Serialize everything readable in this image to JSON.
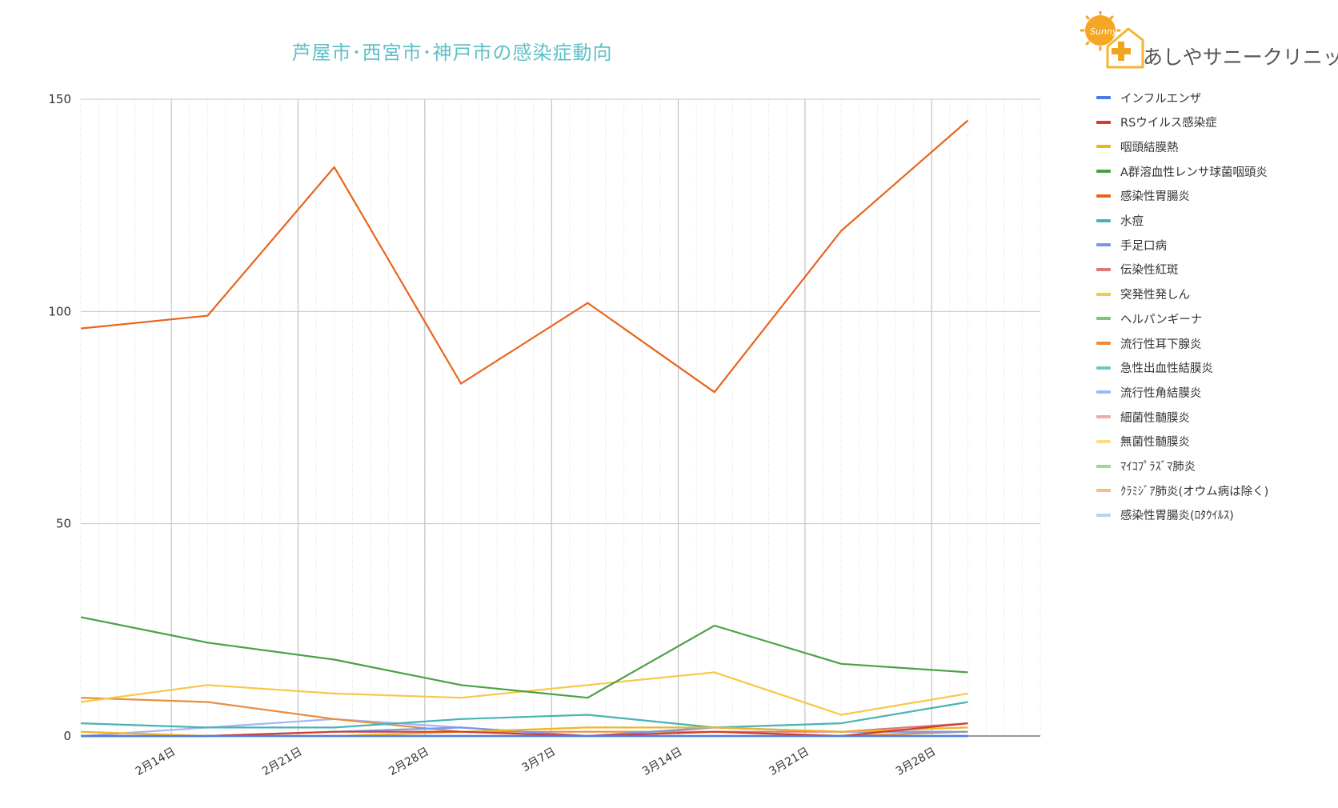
{
  "chart_data": {
    "type": "line",
    "title": "芦屋市･西宮市･神戸市の感染症動向",
    "xlabel": "",
    "ylabel": "",
    "ylim": [
      0,
      150
    ],
    "yticks": [
      0,
      50,
      100,
      150
    ],
    "x_start": "2月9日",
    "x_end": "4月2日",
    "x": [
      "2月9日",
      "2月16日",
      "2月23日",
      "3月2日",
      "3月9日",
      "3月16日",
      "3月23日",
      "3月30日"
    ],
    "x_tick_labels": [
      "2月14日",
      "2月21日",
      "2月28日",
      "3月7日",
      "3月14日",
      "3月21日",
      "3月28日"
    ],
    "grid": true,
    "legend_position": "right",
    "series": [
      {
        "name": "インフルエンザ",
        "color": "#4a7ee6",
        "values": [
          0,
          0,
          0,
          0,
          0,
          0,
          0,
          0
        ]
      },
      {
        "name": "RSウイルス感染症",
        "color": "#d23c32",
        "values": [
          0,
          0,
          1,
          1,
          0,
          1,
          0,
          3
        ]
      },
      {
        "name": "咽頭結膜熱",
        "color": "#f0b41e",
        "values": [
          1,
          0,
          0,
          1,
          2,
          2,
          1,
          2
        ]
      },
      {
        "name": "A群溶血性レンサ球菌咽頭炎",
        "color": "#4aa046",
        "values": [
          28,
          22,
          18,
          12,
          9,
          26,
          17,
          15
        ]
      },
      {
        "name": "感染性胃腸炎",
        "color": "#e8641e",
        "values": [
          96,
          99,
          134,
          83,
          102,
          81,
          119,
          145
        ]
      },
      {
        "name": "水痘",
        "color": "#46b4b4",
        "values": [
          3,
          2,
          2,
          4,
          5,
          2,
          3,
          8
        ]
      },
      {
        "name": "手足口病",
        "color": "#7896f0",
        "values": [
          0,
          0,
          1,
          2,
          0,
          2,
          1,
          1
        ]
      },
      {
        "name": "伝染性紅斑",
        "color": "#dc7878",
        "values": [
          0,
          0,
          0,
          0,
          0,
          1,
          1,
          3
        ]
      },
      {
        "name": "突発性発しん",
        "color": "#f5c846",
        "values": [
          8,
          12,
          10,
          9,
          12,
          15,
          5,
          10
        ]
      },
      {
        "name": "ヘルパンギーナ",
        "color": "#78c878",
        "values": [
          0,
          0,
          0,
          0,
          0,
          0,
          0,
          0
        ]
      },
      {
        "name": "流行性耳下腺炎",
        "color": "#eb8c3c",
        "values": [
          9,
          8,
          4,
          1,
          1,
          1,
          0,
          1
        ]
      },
      {
        "name": "急性出血性結膜炎",
        "color": "#6ec8c8",
        "values": [
          0,
          0,
          0,
          0,
          0,
          0,
          0,
          0
        ]
      },
      {
        "name": "流行性角結膜炎",
        "color": "#a5b4f5",
        "values": [
          0,
          2,
          4,
          2,
          0,
          2,
          1,
          1
        ]
      },
      {
        "name": "細菌性髄膜炎",
        "color": "#f0aaaa",
        "values": [
          0,
          0,
          0,
          0,
          0,
          0,
          0,
          0
        ]
      },
      {
        "name": "無菌性髄膜炎",
        "color": "#fadc8c",
        "values": [
          0,
          0,
          0,
          0,
          0,
          0,
          0,
          0
        ]
      },
      {
        "name": "ﾏｲｺﾌﾟﾗｽﾞﾏ肺炎",
        "color": "#a0d7a0",
        "values": [
          0,
          0,
          0,
          0,
          0,
          0,
          0,
          0
        ]
      },
      {
        "name": "ｸﾗﾐｼﾞｱ肺炎(オウム病は除く)",
        "color": "#f0be82",
        "values": [
          0,
          0,
          0,
          0,
          0,
          0,
          0,
          0
        ]
      },
      {
        "name": "感染性胃腸炎(ﾛﾀｳｲﾙｽ)",
        "color": "#b4d7f0",
        "values": [
          0,
          0,
          0,
          0,
          0,
          0,
          0,
          0
        ]
      }
    ]
  },
  "logo": {
    "name": "あしやサニークリニック",
    "badge_text": "Sunny",
    "colors": {
      "sun": "#f0a51e",
      "house": "#f5b432",
      "cross": "#f0a51e"
    }
  }
}
